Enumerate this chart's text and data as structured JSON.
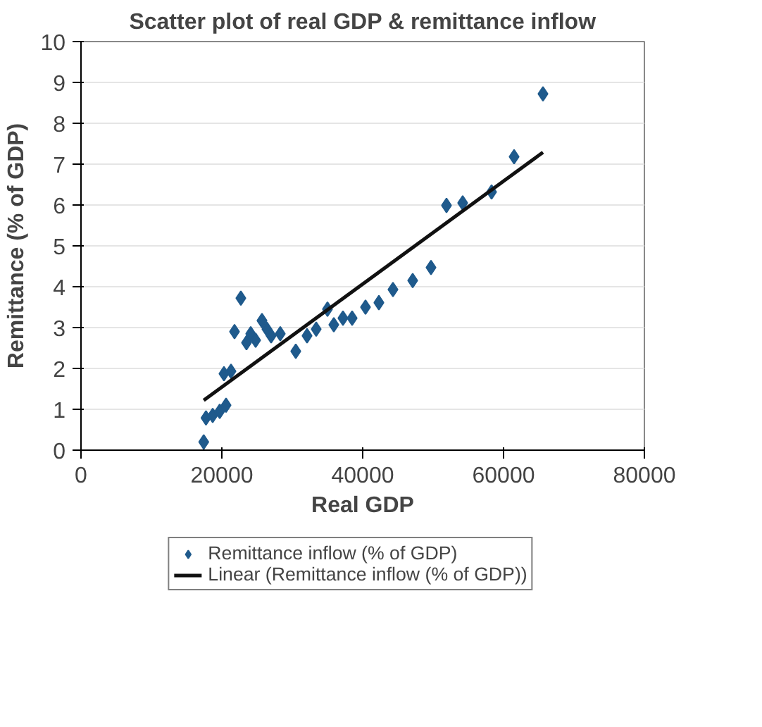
{
  "chart_data": {
    "type": "scatter",
    "title": "Scatter plot of real GDP & remittance inflow",
    "xlabel": "Real GDP",
    "ylabel": "Remittance (% of GDP)",
    "xlim": [
      0,
      80000
    ],
    "xticks": [
      0,
      20000,
      40000,
      60000,
      80000
    ],
    "ylim": [
      0,
      10
    ],
    "yticks": [
      0,
      1,
      2,
      3,
      4,
      5,
      6,
      7,
      8,
      9,
      10
    ],
    "grid": "y",
    "legend": "bottom",
    "series": [
      {
        "name": "Remittance inflow (% of GDP)",
        "color": "#1f5a8c",
        "marker": "diamond",
        "x": [
          17430,
          17750,
          18700,
          19700,
          20600,
          20300,
          21300,
          21800,
          22700,
          23500,
          24100,
          24800,
          25700,
          26400,
          27000,
          28300,
          30500,
          32100,
          33400,
          35000,
          35900,
          37200,
          38500,
          40400,
          42300,
          44300,
          47100,
          49700,
          51900,
          54200,
          58300,
          61500,
          65600
        ],
        "values": [
          0.2,
          0.79,
          0.85,
          0.95,
          1.1,
          1.87,
          1.93,
          2.9,
          3.72,
          2.63,
          2.85,
          2.69,
          3.17,
          2.96,
          2.8,
          2.85,
          2.42,
          2.8,
          2.96,
          3.45,
          3.07,
          3.23,
          3.23,
          3.5,
          3.61,
          3.93,
          4.15,
          4.47,
          5.99,
          6.05,
          6.32,
          7.18,
          8.72
        ]
      },
      {
        "name": "Linear (Remittance inflow (% of GDP))",
        "color": "#111111",
        "type": "line",
        "x": [
          17430,
          65600
        ],
        "values": [
          1.22,
          7.29
        ]
      }
    ]
  }
}
